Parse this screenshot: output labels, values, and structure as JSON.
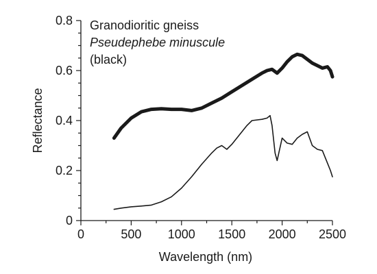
{
  "chart_data": {
    "type": "line",
    "xlabel": "Wavelength (nm)",
    "ylabel": "Reflectance",
    "xlim": [
      0,
      2500
    ],
    "ylim": [
      0,
      0.8
    ],
    "x_ticks": [
      "0",
      "500",
      "1000",
      "1500",
      "2000",
      "2500"
    ],
    "y_ticks": [
      "0",
      "0.2",
      "0.4",
      "0.6",
      "0.8"
    ],
    "grid": false,
    "legend_placement": "top-left",
    "annotation": {
      "line1": "Granodioritic gneiss",
      "line2": "Pseudephebe minuscule",
      "line3": "(black)"
    },
    "series": [
      {
        "color": "#1a1a1a",
        "style": "thick",
        "x": [
          330,
          400,
          500,
          600,
          700,
          800,
          900,
          1000,
          1100,
          1200,
          1300,
          1400,
          1500,
          1600,
          1700,
          1800,
          1850,
          1900,
          1950,
          2000,
          2050,
          2100,
          2150,
          2200,
          2250,
          2300,
          2350,
          2400,
          2450,
          2480,
          2500
        ],
        "values": [
          0.33,
          0.37,
          0.41,
          0.435,
          0.445,
          0.447,
          0.445,
          0.445,
          0.44,
          0.45,
          0.47,
          0.49,
          0.515,
          0.54,
          0.565,
          0.59,
          0.6,
          0.605,
          0.59,
          0.61,
          0.635,
          0.655,
          0.665,
          0.66,
          0.645,
          0.63,
          0.62,
          0.61,
          0.615,
          0.6,
          0.575
        ]
      },
      {
        "color": "#1a1a1a",
        "style": "thin",
        "x": [
          330,
          400,
          500,
          600,
          700,
          800,
          900,
          1000,
          1100,
          1200,
          1300,
          1350,
          1400,
          1450,
          1500,
          1550,
          1600,
          1650,
          1700,
          1800,
          1850,
          1880,
          1900,
          1930,
          1950,
          2000,
          2050,
          2100,
          2150,
          2200,
          2250,
          2300,
          2350,
          2400,
          2450,
          2480,
          2500
        ],
        "values": [
          0.045,
          0.05,
          0.055,
          0.058,
          0.062,
          0.075,
          0.095,
          0.13,
          0.175,
          0.225,
          0.27,
          0.29,
          0.3,
          0.285,
          0.305,
          0.33,
          0.355,
          0.38,
          0.4,
          0.405,
          0.41,
          0.42,
          0.38,
          0.27,
          0.24,
          0.33,
          0.31,
          0.305,
          0.33,
          0.345,
          0.355,
          0.3,
          0.285,
          0.28,
          0.23,
          0.2,
          0.175
        ]
      }
    ]
  }
}
